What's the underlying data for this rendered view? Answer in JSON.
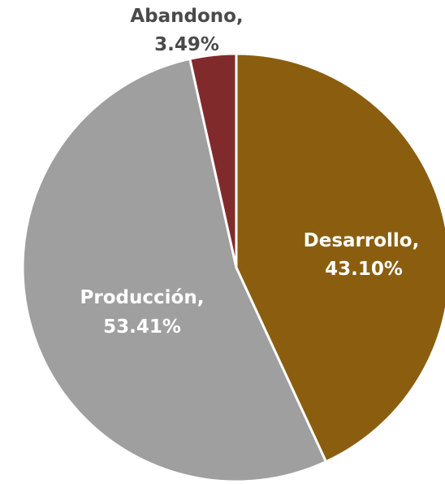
{
  "chart_data": {
    "type": "pie",
    "slices": [
      {
        "label": "Desarrollo",
        "value": 43.1,
        "label_text": "Desarrollo,",
        "value_text": "43.10%",
        "color": "#8B5E0F",
        "text_color": "#FFFFFF"
      },
      {
        "label": "Producción",
        "value": 53.41,
        "label_text": "Producción,",
        "value_text": "53.41%",
        "color": "#A09FA0",
        "text_color": "#FFFFFF"
      },
      {
        "label": "Abandono",
        "value": 3.49,
        "label_text": "Abandono,",
        "value_text": "3.49%",
        "color": "#812A2C",
        "text_color": "#4A4A4A"
      }
    ],
    "start_angle": "12 o'clock",
    "direction": "clockwise",
    "slice_border_color": "#FFFFFF",
    "legend": "none"
  }
}
